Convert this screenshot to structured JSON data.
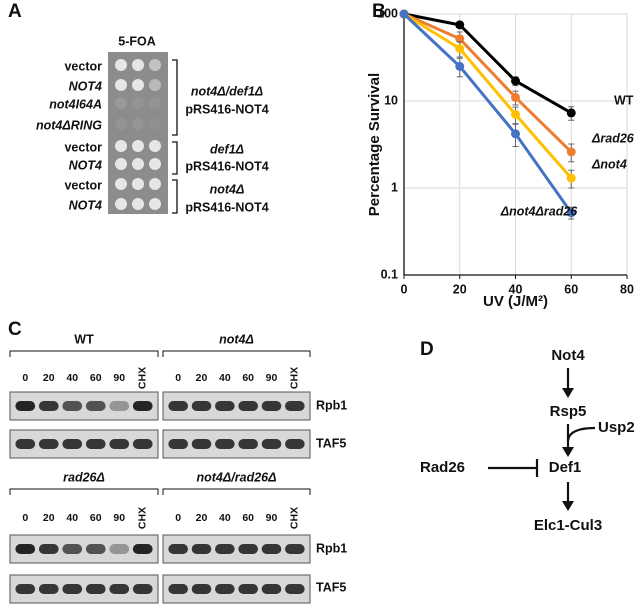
{
  "panel_a": {
    "letter": "A",
    "column_header": "5-FOA",
    "rows": [
      "vector",
      "NOT4",
      "not4I64A",
      "not4ΔRING",
      "vector",
      "NOT4",
      "vector",
      "NOT4"
    ],
    "groups": [
      {
        "strain": "not4Δ/def1Δ",
        "plasmid": "pRS416-NOT4"
      },
      {
        "strain": "def1Δ",
        "plasmid": "pRS416-NOT4"
      },
      {
        "strain": "not4Δ",
        "plasmid": "pRS416-NOT4"
      }
    ]
  },
  "chart_data": {
    "type": "line",
    "letter": "B",
    "x_label": "UV (J/M²)",
    "y_label": "Percentage Survival",
    "x": [
      0,
      20,
      40,
      60
    ],
    "xlim": [
      0,
      80
    ],
    "xticks": [
      0,
      20,
      40,
      60,
      80
    ],
    "ylim": [
      0.1,
      100
    ],
    "yticks": [
      0.1,
      1,
      10,
      100
    ],
    "y_scale": "log",
    "grid": true,
    "series": [
      {
        "name": "WT",
        "color": "#000000",
        "values": [
          100,
          75,
          17,
          7.3
        ],
        "errors": [
          0,
          5,
          2,
          1.3
        ]
      },
      {
        "name": "Δrad26",
        "color": "#ED7D31",
        "values": [
          100,
          52,
          11,
          2.6
        ],
        "errors": [
          0,
          10,
          2,
          0.6
        ]
      },
      {
        "name": "Δnot4",
        "color": "#FFC000",
        "values": [
          100,
          40,
          7,
          1.3
        ],
        "errors": [
          0,
          8,
          1.5,
          0.3
        ]
      },
      {
        "name": "Δnot4Δrad26",
        "color": "#4472C4",
        "values": [
          100,
          25,
          4.2,
          0.52
        ],
        "errors": [
          0,
          6,
          1.2,
          0.08
        ]
      }
    ]
  },
  "panel_c": {
    "letter": "C",
    "blots": [
      {
        "genotype": "WT",
        "lanes": [
          "0",
          "20",
          "40",
          "60",
          "90",
          "CHX"
        ]
      },
      {
        "genotype": "not4Δ",
        "lanes": [
          "0",
          "20",
          "40",
          "60",
          "90",
          "CHX"
        ]
      },
      {
        "genotype": "rad26Δ",
        "lanes": [
          "0",
          "20",
          "40",
          "60",
          "90",
          "CHX"
        ]
      },
      {
        "genotype": "not4Δ/rad26Δ",
        "lanes": [
          "0",
          "20",
          "40",
          "60",
          "90",
          "CHX"
        ]
      }
    ],
    "band_labels": [
      "Rpb1",
      "TAF5",
      "Rpb1",
      "TAF5"
    ]
  },
  "panel_d": {
    "letter": "D",
    "nodes": [
      "Not4",
      "Rsp5",
      "Usp2",
      "Rad26",
      "Def1",
      "Elc1-Cul3"
    ]
  }
}
